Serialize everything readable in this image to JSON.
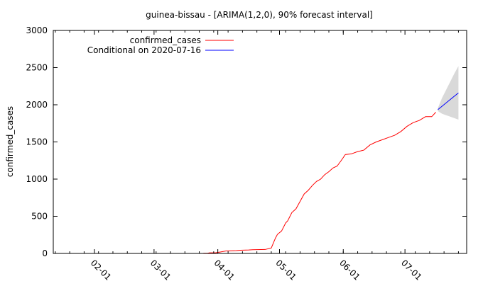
{
  "chart_data": {
    "type": "line",
    "title": "guinea-bissau -  [ARIMA(1,2,0), 90% forecast interval]",
    "ylabel": "confirmed_cases",
    "xlabel": "",
    "ylim": [
      0,
      3000
    ],
    "xlim": [
      "2020-01-12",
      "2020-07-31"
    ],
    "yticks": [
      0,
      500,
      1000,
      1500,
      2000,
      2500,
      3000
    ],
    "xticks": [
      "2020-02-01",
      "2020-03-01",
      "2020-04-01",
      "2020-05-01",
      "2020-06-01",
      "2020-07-01"
    ],
    "xtick_labels": [
      "02-01",
      "03-01",
      "04-01",
      "05-01",
      "06-01",
      "07-01"
    ],
    "legend_position": "top-left",
    "grid": false,
    "series": [
      {
        "name": "confirmed_cases",
        "color": "#ff0000",
        "points": [
          [
            "2020-03-25",
            2
          ],
          [
            "2020-03-27",
            2
          ],
          [
            "2020-03-28",
            8
          ],
          [
            "2020-03-31",
            9
          ],
          [
            "2020-04-02",
            18
          ],
          [
            "2020-04-05",
            33
          ],
          [
            "2020-04-10",
            38
          ],
          [
            "2020-04-12",
            43
          ],
          [
            "2020-04-16",
            46
          ],
          [
            "2020-04-18",
            50
          ],
          [
            "2020-04-22",
            52
          ],
          [
            "2020-04-24",
            53
          ],
          [
            "2020-04-27",
            73
          ],
          [
            "2020-04-29",
            205
          ],
          [
            "2020-04-30",
            257
          ],
          [
            "2020-05-02",
            302
          ],
          [
            "2020-05-04",
            410
          ],
          [
            "2020-05-05",
            440
          ],
          [
            "2020-05-07",
            550
          ],
          [
            "2020-05-09",
            600
          ],
          [
            "2020-05-11",
            700
          ],
          [
            "2020-05-13",
            800
          ],
          [
            "2020-05-15",
            850
          ],
          [
            "2020-05-17",
            915
          ],
          [
            "2020-05-19",
            969
          ],
          [
            "2020-05-21",
            1000
          ],
          [
            "2020-05-23",
            1060
          ],
          [
            "2020-05-25",
            1100
          ],
          [
            "2020-05-27",
            1150
          ],
          [
            "2020-05-29",
            1175
          ],
          [
            "2020-05-31",
            1250
          ],
          [
            "2020-06-02",
            1330
          ],
          [
            "2020-06-05",
            1340
          ],
          [
            "2020-06-08",
            1370
          ],
          [
            "2020-06-11",
            1390
          ],
          [
            "2020-06-14",
            1460
          ],
          [
            "2020-06-17",
            1500
          ],
          [
            "2020-06-20",
            1530
          ],
          [
            "2020-06-23",
            1560
          ],
          [
            "2020-06-26",
            1590
          ],
          [
            "2020-06-29",
            1640
          ],
          [
            "2020-07-02",
            1710
          ],
          [
            "2020-07-05",
            1760
          ],
          [
            "2020-07-08",
            1790
          ],
          [
            "2020-07-11",
            1840
          ],
          [
            "2020-07-14",
            1840
          ],
          [
            "2020-07-16",
            1900
          ]
        ]
      },
      {
        "name": "Conditional on 2020-07-16",
        "color": "#0000ff",
        "points": [
          [
            "2020-07-17",
            1935
          ],
          [
            "2020-07-19",
            1980
          ],
          [
            "2020-07-21",
            2025
          ],
          [
            "2020-07-23",
            2070
          ],
          [
            "2020-07-25",
            2115
          ],
          [
            "2020-07-27",
            2160
          ]
        ],
        "interval": {
          "color": "#d9d9d9",
          "dates": [
            "2020-07-17",
            "2020-07-19",
            "2020-07-21",
            "2020-07-23",
            "2020-07-25",
            "2020-07-27"
          ],
          "lower": [
            1915,
            1880,
            1860,
            1840,
            1820,
            1800
          ],
          "upper": [
            1955,
            2090,
            2200,
            2310,
            2420,
            2520
          ]
        }
      }
    ]
  }
}
